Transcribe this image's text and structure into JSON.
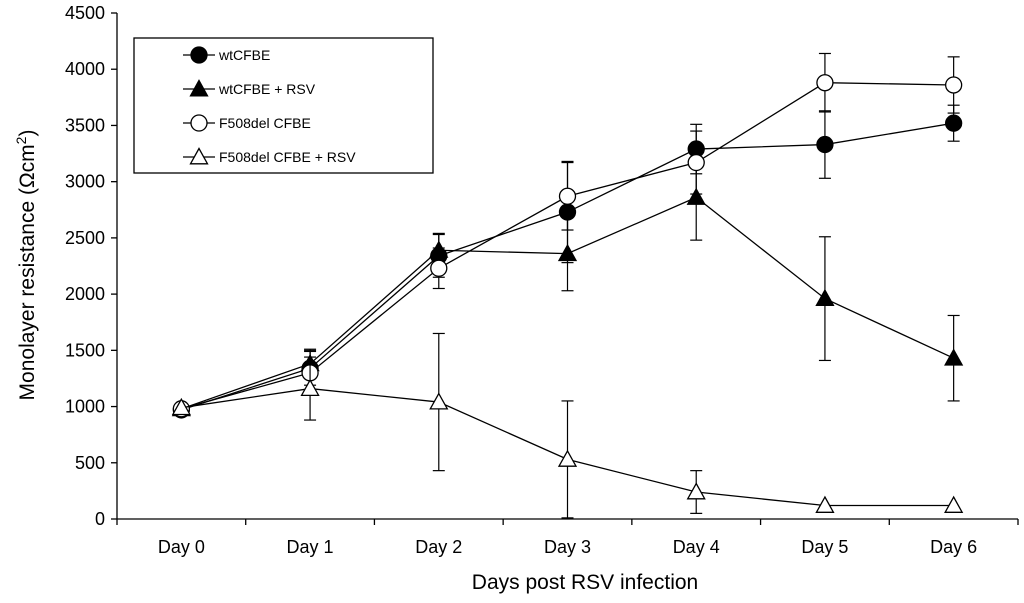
{
  "chart_data": {
    "type": "line",
    "title": "",
    "xlabel": "Days post RSV infection",
    "ylabel_main": "Monolayer resistance (Ωcm",
    "ylabel_sup": "2",
    "ylabel_close": ")",
    "categories": [
      "Day 0",
      "Day 1",
      "Day 2",
      "Day 3",
      "Day 4",
      "Day 5",
      "Day 6"
    ],
    "ylim": [
      0,
      4500
    ],
    "yticks": [
      0,
      500,
      1000,
      1500,
      2000,
      2500,
      3000,
      3500,
      4000,
      4500
    ],
    "legend_position": "top-left",
    "series": [
      {
        "name": "wtCFBE",
        "marker": "circle",
        "fill": "#000000",
        "values": [
          970,
          1340,
          2340,
          2730,
          3290,
          3330,
          3520
        ],
        "errors": [
          0,
          150,
          190,
          450,
          220,
          300,
          160
        ]
      },
      {
        "name": "wtCFBE + RSV",
        "marker": "triangle",
        "fill": "#000000",
        "values": [
          980,
          1380,
          2390,
          2360,
          2860,
          1960,
          1430
        ],
        "errors": [
          0,
          130,
          150,
          330,
          380,
          550,
          380
        ]
      },
      {
        "name": "F508del CFBE",
        "marker": "circle",
        "fill": "#ffffff",
        "values": [
          980,
          1300,
          2230,
          2870,
          3170,
          3880,
          3860
        ],
        "errors": [
          0,
          200,
          180,
          300,
          280,
          260,
          250
        ]
      },
      {
        "name": "F508del CFBE + RSV",
        "marker": "triangle",
        "fill": "#ffffff",
        "values": [
          990,
          1160,
          1040,
          530,
          240,
          120,
          120
        ],
        "errors": [
          0,
          280,
          610,
          520,
          190,
          0,
          0
        ]
      }
    ]
  }
}
